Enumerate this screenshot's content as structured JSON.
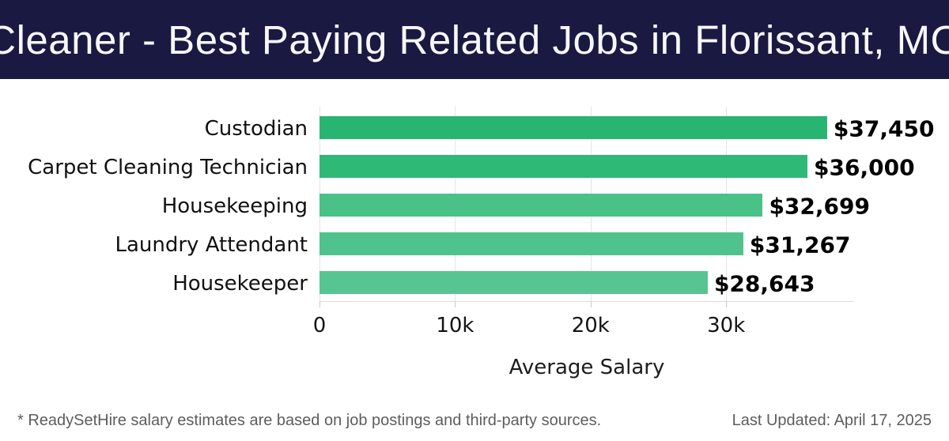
{
  "header": {
    "title": "Cleaner - Best Paying Related Jobs in Florissant, MO",
    "bg_color": "#191942",
    "text_color": "#f7f7f9"
  },
  "chart_data": {
    "type": "bar",
    "orientation": "horizontal",
    "title": "Cleaner - Best Paying Related Jobs in Florissant, MO",
    "categories": [
      "Custodian",
      "Carpet Cleaning Technician",
      "Housekeeping",
      "Laundry Attendant",
      "Housekeeper"
    ],
    "values": [
      37450,
      36000,
      32699,
      31267,
      28643
    ],
    "value_labels": [
      "$37,450",
      "$36,000",
      "$32,699",
      "$31,267",
      "$28,643"
    ],
    "bar_colors": [
      "#28b572",
      "#2fb977",
      "#49c187",
      "#4fc38b",
      "#57c591"
    ],
    "xlabel": "Average Salary",
    "ylabel": "",
    "xlim": [
      0,
      39440
    ],
    "xticks": [
      {
        "value": 0,
        "label": "0"
      },
      {
        "value": 10000,
        "label": "10k"
      },
      {
        "value": 20000,
        "label": "20k"
      },
      {
        "value": 30000,
        "label": "30k"
      }
    ],
    "grid": true,
    "legend": false
  },
  "footer": {
    "disclaimer": "* ReadySetHire salary estimates are based on job postings and third-party sources.",
    "last_updated": "Last Updated: April 17, 2025"
  }
}
